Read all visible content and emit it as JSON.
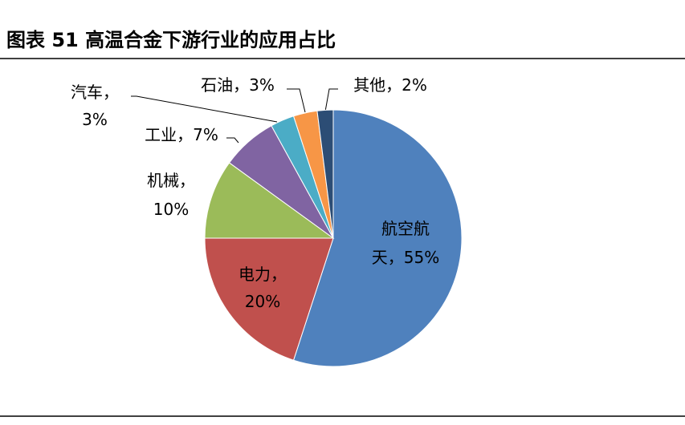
{
  "chart_data": {
    "type": "pie",
    "title": "图表 51 高温合金下游行业的应用占比",
    "values": [
      55,
      20,
      10,
      7,
      3,
      3,
      2
    ],
    "value_labels": [
      "航空航天，55%",
      "电力，20%",
      "机械，10%",
      "工业，7%",
      "汽车，3%",
      "石油，3%",
      "其他，2%"
    ],
    "colors": [
      "#4f81bd",
      "#c0504d",
      "#9bbb59",
      "#8064a2",
      "#4bacc6",
      "#f79646",
      "#2c4d75"
    ]
  }
}
